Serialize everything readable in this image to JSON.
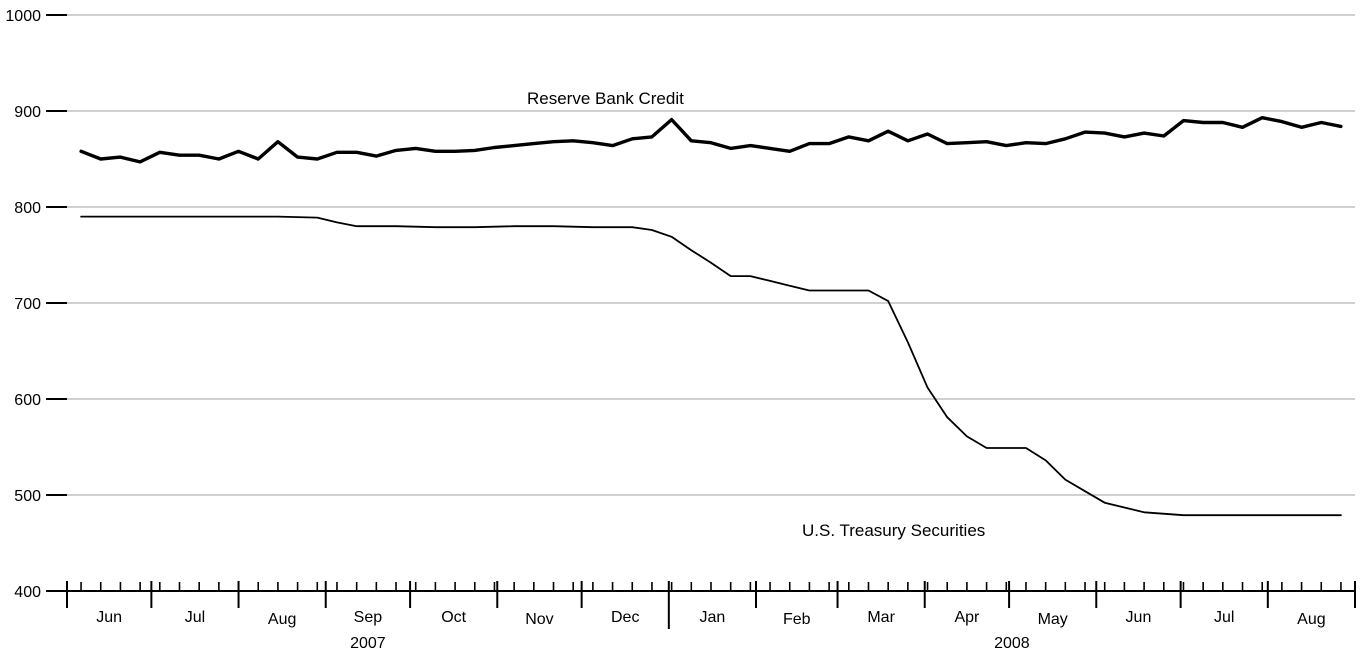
{
  "chart_data": {
    "type": "line",
    "title": "",
    "xlabel": "",
    "ylabel": "",
    "ylim": [
      400,
      1000
    ],
    "yticks": [
      400,
      500,
      600,
      700,
      800,
      900,
      1000
    ],
    "grid": true,
    "months": [
      "Jun",
      "Jul",
      "Aug",
      "Sep",
      "Oct",
      "Nov",
      "Dec",
      "Jan",
      "Feb",
      "Mar",
      "Apr",
      "May",
      "Jun",
      "Jul",
      "Aug"
    ],
    "years": [
      {
        "label": "2007",
        "first_month": 0,
        "last_month": 6
      },
      {
        "label": "2008",
        "first_month": 7,
        "last_month": 14
      }
    ],
    "x_range": [
      "2007-06-01",
      "2008-09-01"
    ],
    "series": [
      {
        "name": "Reserve Bank Credit",
        "color": "#000000",
        "weight": "bold",
        "x": [
          "2007-06-06",
          "2007-06-13",
          "2007-06-20",
          "2007-06-27",
          "2007-07-04",
          "2007-07-11",
          "2007-07-18",
          "2007-07-25",
          "2007-08-01",
          "2007-08-08",
          "2007-08-15",
          "2007-08-22",
          "2007-08-29",
          "2007-09-05",
          "2007-09-12",
          "2007-09-19",
          "2007-09-26",
          "2007-10-03",
          "2007-10-10",
          "2007-10-17",
          "2007-10-24",
          "2007-10-31",
          "2007-11-07",
          "2007-11-14",
          "2007-11-21",
          "2007-11-28",
          "2007-12-05",
          "2007-12-12",
          "2007-12-19",
          "2007-12-26",
          "2008-01-02",
          "2008-01-09",
          "2008-01-16",
          "2008-01-23",
          "2008-01-30",
          "2008-02-06",
          "2008-02-13",
          "2008-02-20",
          "2008-02-27",
          "2008-03-05",
          "2008-03-12",
          "2008-03-19",
          "2008-03-26",
          "2008-04-02",
          "2008-04-09",
          "2008-04-16",
          "2008-04-23",
          "2008-04-30",
          "2008-05-07",
          "2008-05-14",
          "2008-05-21",
          "2008-05-28",
          "2008-06-04",
          "2008-06-11",
          "2008-06-18",
          "2008-06-25",
          "2008-07-02",
          "2008-07-09",
          "2008-07-16",
          "2008-07-23",
          "2008-07-30",
          "2008-08-06",
          "2008-08-13",
          "2008-08-20",
          "2008-08-27"
        ],
        "values": [
          858,
          850,
          852,
          847,
          857,
          854,
          854,
          850,
          858,
          850,
          868,
          852,
          850,
          857,
          857,
          853,
          859,
          861,
          858,
          858,
          859,
          862,
          864,
          866,
          868,
          869,
          867,
          864,
          871,
          873,
          891,
          869,
          867,
          861,
          864,
          861,
          858,
          866,
          866,
          873,
          869,
          879,
          869,
          876,
          866,
          867,
          868,
          864,
          867,
          866,
          871,
          878,
          877,
          873,
          877,
          874,
          890,
          888,
          888,
          883,
          893,
          889,
          883,
          888,
          884
        ]
      },
      {
        "name": "U.S. Treasury Securities",
        "color": "#000000",
        "weight": "normal",
        "x": [
          "2007-06-06",
          "2007-06-20",
          "2007-07-04",
          "2007-07-18",
          "2007-08-01",
          "2007-08-15",
          "2007-08-29",
          "2007-09-05",
          "2007-09-12",
          "2007-09-26",
          "2007-10-10",
          "2007-10-24",
          "2007-11-07",
          "2007-11-21",
          "2007-12-05",
          "2007-12-19",
          "2007-12-26",
          "2008-01-02",
          "2008-01-09",
          "2008-01-16",
          "2008-01-23",
          "2008-01-30",
          "2008-02-06",
          "2008-02-13",
          "2008-02-20",
          "2008-02-27",
          "2008-03-05",
          "2008-03-12",
          "2008-03-19",
          "2008-03-26",
          "2008-04-02",
          "2008-04-09",
          "2008-04-16",
          "2008-04-23",
          "2008-04-30",
          "2008-05-07",
          "2008-05-14",
          "2008-05-21",
          "2008-05-28",
          "2008-06-04",
          "2008-06-11",
          "2008-06-18",
          "2008-07-02",
          "2008-07-16",
          "2008-07-30",
          "2008-08-13",
          "2008-08-27"
        ],
        "values": [
          790,
          790,
          790,
          790,
          790,
          790,
          789,
          784,
          780,
          780,
          779,
          779,
          780,
          780,
          779,
          779,
          776,
          769,
          755,
          742,
          728,
          728,
          723,
          718,
          713,
          713,
          713,
          713,
          702,
          659,
          612,
          581,
          561,
          549,
          549,
          549,
          536,
          516,
          504,
          492,
          487,
          482,
          479,
          479,
          479,
          479,
          479
        ]
      }
    ]
  }
}
